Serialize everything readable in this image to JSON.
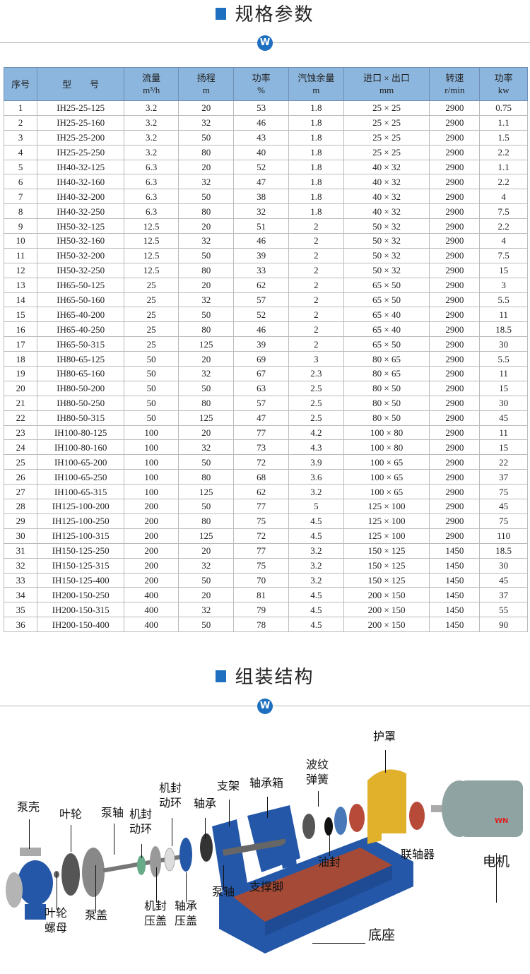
{
  "section1": {
    "title": "规格参数",
    "logo": "W"
  },
  "section2": {
    "title": "组装结构",
    "logo": "W"
  },
  "table": {
    "headers": [
      {
        "l1": "序号",
        "l2": ""
      },
      {
        "l1": "型　　号",
        "l2": ""
      },
      {
        "l1": "流量",
        "l2": "m³/h"
      },
      {
        "l1": "扬程",
        "l2": "m"
      },
      {
        "l1": "功率",
        "l2": "%"
      },
      {
        "l1": "汽蚀余量",
        "l2": "m"
      },
      {
        "l1": "进口 × 出口",
        "l2": "mm"
      },
      {
        "l1": "转速",
        "l2": "r/min"
      },
      {
        "l1": "功率",
        "l2": "kw"
      }
    ],
    "rows": [
      [
        "1",
        "IH25-25-125",
        "3.2",
        "20",
        "53",
        "1.8",
        "25 × 25",
        "2900",
        "0.75"
      ],
      [
        "2",
        "IH25-25-160",
        "3.2",
        "32",
        "46",
        "1.8",
        "25 × 25",
        "2900",
        "1.1"
      ],
      [
        "3",
        "IH25-25-200",
        "3.2",
        "50",
        "43",
        "1.8",
        "25 × 25",
        "2900",
        "1.5"
      ],
      [
        "4",
        "IH25-25-250",
        "3.2",
        "80",
        "40",
        "1.8",
        "25 × 25",
        "2900",
        "2.2"
      ],
      [
        "5",
        "IH40-32-125",
        "6.3",
        "20",
        "52",
        "1.8",
        "40 × 32",
        "2900",
        "1.1"
      ],
      [
        "6",
        "IH40-32-160",
        "6.3",
        "32",
        "47",
        "1.8",
        "40 × 32",
        "2900",
        "2.2"
      ],
      [
        "7",
        "IH40-32-200",
        "6.3",
        "50",
        "38",
        "1.8",
        "40 × 32",
        "2900",
        "4"
      ],
      [
        "8",
        "IH40-32-250",
        "6.3",
        "80",
        "32",
        "1.8",
        "40 × 32",
        "2900",
        "7.5"
      ],
      [
        "9",
        "IH50-32-125",
        "12.5",
        "20",
        "51",
        "2",
        "50 × 32",
        "2900",
        "2.2"
      ],
      [
        "10",
        "IH50-32-160",
        "12.5",
        "32",
        "46",
        "2",
        "50 × 32",
        "2900",
        "4"
      ],
      [
        "11",
        "IH50-32-200",
        "12.5",
        "50",
        "39",
        "2",
        "50 × 32",
        "2900",
        "7.5"
      ],
      [
        "12",
        "IH50-32-250",
        "12.5",
        "80",
        "33",
        "2",
        "50 × 32",
        "2900",
        "15"
      ],
      [
        "13",
        "IH65-50-125",
        "25",
        "20",
        "62",
        "2",
        "65 × 50",
        "2900",
        "3"
      ],
      [
        "14",
        "IH65-50-160",
        "25",
        "32",
        "57",
        "2",
        "65 × 50",
        "2900",
        "5.5"
      ],
      [
        "15",
        "IH65-40-200",
        "25",
        "50",
        "52",
        "2",
        "65 × 40",
        "2900",
        "11"
      ],
      [
        "16",
        "IH65-40-250",
        "25",
        "80",
        "46",
        "2",
        "65 × 40",
        "2900",
        "18.5"
      ],
      [
        "17",
        "IH65-50-315",
        "25",
        "125",
        "39",
        "2",
        "65 × 50",
        "2900",
        "30"
      ],
      [
        "18",
        "IH80-65-125",
        "50",
        "20",
        "69",
        "3",
        "80 × 65",
        "2900",
        "5.5"
      ],
      [
        "19",
        "IH80-65-160",
        "50",
        "32",
        "67",
        "2.3",
        "80 × 65",
        "2900",
        "11"
      ],
      [
        "20",
        "IH80-50-200",
        "50",
        "50",
        "63",
        "2.5",
        "80 × 50",
        "2900",
        "15"
      ],
      [
        "21",
        "IH80-50-250",
        "50",
        "80",
        "57",
        "2.5",
        "80 × 50",
        "2900",
        "30"
      ],
      [
        "22",
        "IH80-50-315",
        "50",
        "125",
        "47",
        "2.5",
        "80 × 50",
        "2900",
        "45"
      ],
      [
        "23",
        "IH100-80-125",
        "100",
        "20",
        "77",
        "4.2",
        "100 × 80",
        "2900",
        "11"
      ],
      [
        "24",
        "IH100-80-160",
        "100",
        "32",
        "73",
        "4.3",
        "100 × 80",
        "2900",
        "15"
      ],
      [
        "25",
        "IH100-65-200",
        "100",
        "50",
        "72",
        "3.9",
        "100 × 65",
        "2900",
        "22"
      ],
      [
        "26",
        "IH100-65-250",
        "100",
        "80",
        "68",
        "3.6",
        "100 × 65",
        "2900",
        "37"
      ],
      [
        "27",
        "IH100-65-315",
        "100",
        "125",
        "62",
        "3.2",
        "100 × 65",
        "2900",
        "75"
      ],
      [
        "28",
        "IH125-100-200",
        "200",
        "50",
        "77",
        "5",
        "125 × 100",
        "2900",
        "45"
      ],
      [
        "29",
        "IH125-100-250",
        "200",
        "80",
        "75",
        "4.5",
        "125 × 100",
        "2900",
        "75"
      ],
      [
        "30",
        "IH125-100-315",
        "200",
        "125",
        "72",
        "4.5",
        "125 × 100",
        "2900",
        "110"
      ],
      [
        "31",
        "IH150-125-250",
        "200",
        "20",
        "77",
        "3.2",
        "150 × 125",
        "1450",
        "18.5"
      ],
      [
        "32",
        "IH150-125-315",
        "200",
        "32",
        "75",
        "3.2",
        "150 × 125",
        "1450",
        "30"
      ],
      [
        "33",
        "IH150-125-400",
        "200",
        "50",
        "70",
        "3.2",
        "150 × 125",
        "1450",
        "45"
      ],
      [
        "34",
        "IH200-150-250",
        "400",
        "20",
        "81",
        "4.5",
        "200 × 150",
        "1450",
        "37"
      ],
      [
        "35",
        "IH200-150-315",
        "400",
        "32",
        "79",
        "4.5",
        "200 × 150",
        "1450",
        "55"
      ],
      [
        "36",
        "IH200-150-400",
        "400",
        "50",
        "78",
        "4.5",
        "200 × 150",
        "1450",
        "90"
      ]
    ]
  },
  "diagram": {
    "labels": {
      "pump_casing": "泵壳",
      "impeller": "叶轮",
      "pump_shaft_1": "泵轴",
      "seal_ring_1": "机封\n动环",
      "seal_ring_2": "机封\n动环",
      "bearing": "轴承",
      "bracket": "支架",
      "bearing_box": "轴承箱",
      "bellows_spring": "波纹\n弹簧",
      "guard": "护罩",
      "coupling": "联轴器",
      "motor": "电机",
      "oil_seal": "油封",
      "support_foot": "支撑脚",
      "pump_shaft_2": "泵轴",
      "seal_gland": "机封\n压盖",
      "bearing_cover": "轴承\n压盖",
      "impeller_nut": "叶轮\n螺母",
      "pump_cover": "泵盖",
      "base": "底座",
      "motor_brand": "WN"
    },
    "colors": {
      "cast_blue": "#2457a8",
      "guard_yellow": "#e1b12c",
      "coupling_red": "#b84a3a",
      "motor_gray": "#8fa3a3"
    }
  }
}
